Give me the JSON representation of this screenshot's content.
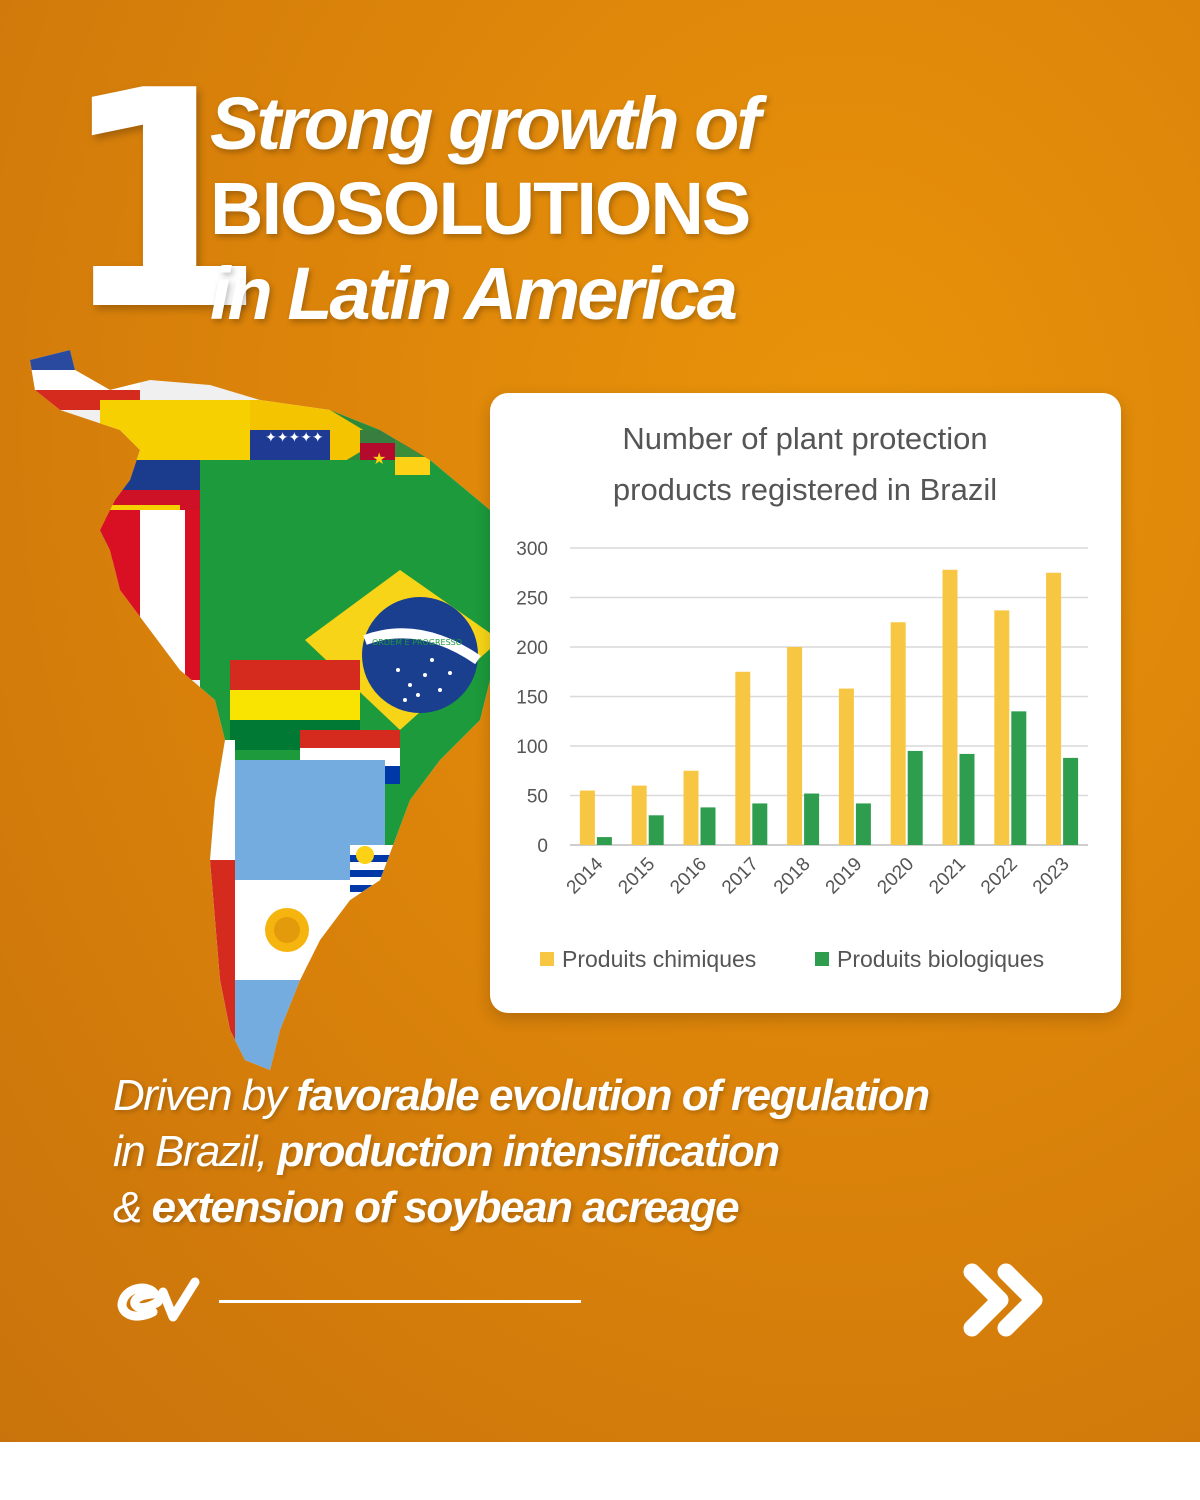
{
  "slide": {
    "number": "1",
    "headline_line1": "Strong growth of",
    "headline_line2": "BIOSOLUTIONS",
    "headline_line3": "in Latin America",
    "subtitle": {
      "line1_regular": "Driven by ",
      "line1_bold": "favorable evolution of regulation",
      "line2_regular": "in Brazil, ",
      "line2_bold": "production intensification",
      "line3_regular": "& ",
      "line3_bold": "extension of soybean acreage"
    },
    "flag_band_text": "ORDEM E PROGRESSO",
    "colors": {
      "background": "#e08a0b",
      "text": "#ffffff",
      "chemical_series": "#f7c744",
      "biological_series": "#2e9e4e"
    },
    "icons": [
      "ev-logo-icon",
      "double-chevron-right-icon"
    ]
  },
  "chart_data": {
    "type": "bar",
    "title_line1": "Number of plant protection",
    "title_line2": "products registered in Brazil",
    "xlabel": "",
    "ylabel": "",
    "categories": [
      "2014",
      "2015",
      "2016",
      "2017",
      "2018",
      "2019",
      "2020",
      "2021",
      "2022",
      "2023"
    ],
    "series": [
      {
        "name": "Produits chimiques",
        "color": "#f7c744",
        "values": [
          55,
          60,
          75,
          175,
          200,
          158,
          225,
          278,
          237,
          275
        ]
      },
      {
        "name": "Produits biologiques",
        "color": "#2e9e4e",
        "values": [
          8,
          30,
          38,
          42,
          52,
          42,
          95,
          92,
          135,
          88
        ]
      }
    ],
    "ylim": [
      0,
      300
    ],
    "yticks": [
      "0",
      "50",
      "100",
      "150",
      "200",
      "250",
      "300"
    ],
    "grid": true,
    "legend_position": "bottom"
  }
}
